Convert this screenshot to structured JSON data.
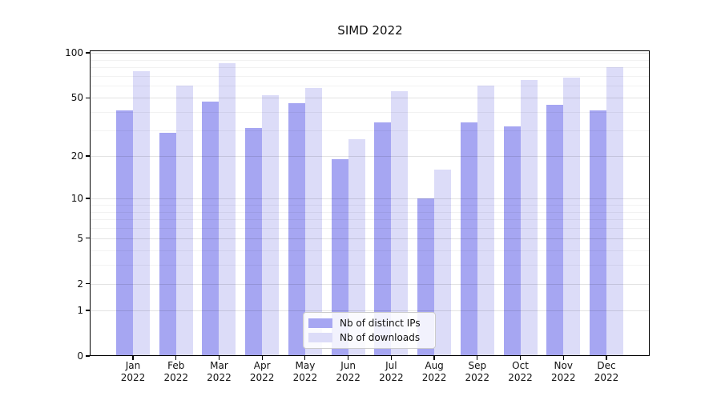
{
  "title": "SIMD 2022",
  "colors": {
    "ips_bar": "#a6a6f2",
    "downloads_bar": "#dcdcf8",
    "axis": "#000000",
    "grid_major": "rgba(0,0,0,0.11)",
    "grid_minor": "rgba(0,0,0,0.05)",
    "legend_border": "#cccccc"
  },
  "legend": {
    "items": [
      {
        "label": "Nb of distinct IPs",
        "series_index": 0
      },
      {
        "label": "Nb of downloads",
        "series_index": 1
      }
    ]
  },
  "chart_data": {
    "type": "bar",
    "title": "SIMD 2022",
    "categories": [
      "Jan",
      "Feb",
      "Mar",
      "Apr",
      "May",
      "Jun",
      "Jul",
      "Aug",
      "Sep",
      "Oct",
      "Nov",
      "Dec"
    ],
    "category_year": "2022",
    "series": [
      {
        "name": "Nb of distinct IPs",
        "color": "#a6a6f2",
        "values": [
          41,
          29,
          47,
          31,
          46,
          19,
          34,
          10,
          34,
          32,
          45,
          41
        ]
      },
      {
        "name": "Nb of downloads",
        "color": "#dcdcf8",
        "values": [
          75,
          60,
          85,
          52,
          58,
          26,
          55,
          16,
          60,
          66,
          68,
          80
        ]
      }
    ],
    "xlabel": "",
    "ylabel": "",
    "yscale": "log1p",
    "ylim": [
      0,
      100
    ],
    "yticks": [
      0,
      1,
      2,
      5,
      10,
      20,
      50,
      100
    ],
    "yticks_minor": [
      3,
      4,
      6,
      7,
      8,
      9,
      30,
      40,
      60,
      70,
      80,
      90
    ],
    "grid": true,
    "legend_position": "lower center"
  }
}
